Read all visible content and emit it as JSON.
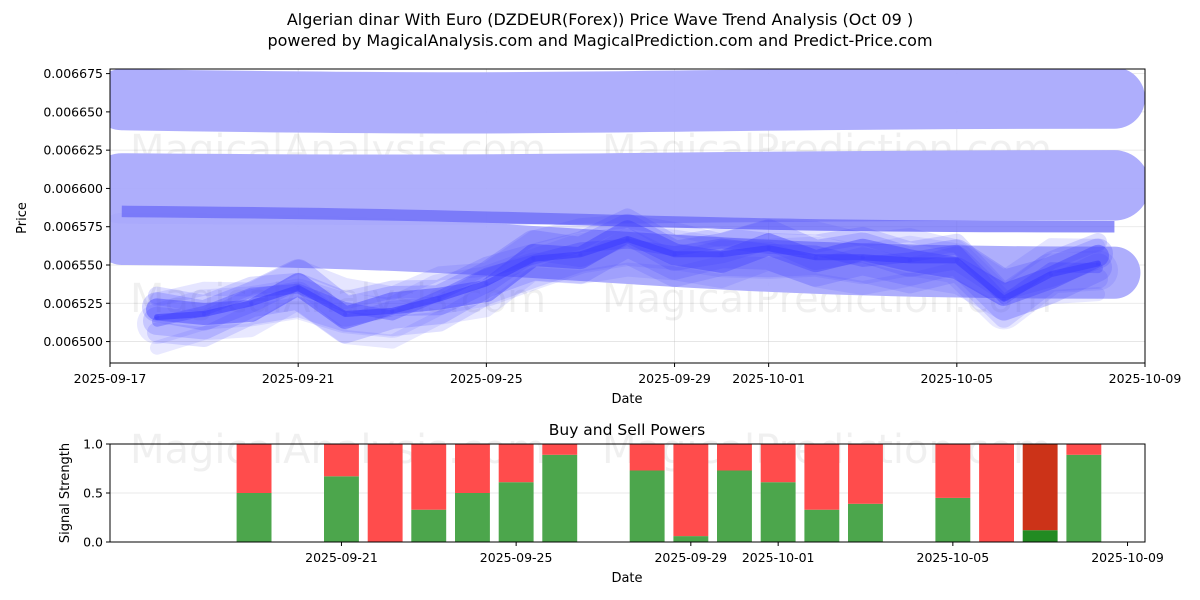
{
  "header": {
    "title": "Algerian dinar With Euro (DZDEUR(Forex)) Price Wave Trend Analysis (Oct 09 )",
    "subtitle": "powered by MagicalAnalysis.com and MagicalPrediction.com and Predict-Price.com"
  },
  "watermarks": [
    "MagicalAnalysis.com",
    "MagicalPrediction.com"
  ],
  "chart_data": [
    {
      "type": "area",
      "title": "",
      "xlabel": "Date",
      "ylabel": "Price",
      "xlim": [
        "2025-09-17",
        "2025-10-09"
      ],
      "ylim": [
        0.006486,
        0.006678
      ],
      "x_ticks": [
        "2025-09-17",
        "2025-09-21",
        "2025-09-25",
        "2025-09-29",
        "2025-10-01",
        "2025-10-05",
        "2025-10-09"
      ],
      "y_ticks": [
        "0.006500",
        "0.006525",
        "0.006550",
        "0.006575",
        "0.006600",
        "0.006625",
        "0.006650",
        "0.006675"
      ],
      "y_tick_values": [
        0.0065,
        0.006525,
        0.00655,
        0.006575,
        0.0066,
        0.006625,
        0.00665,
        0.006675
      ],
      "grid": true,
      "color": "#4444ff",
      "x": [
        "2025-09-18",
        "2025-09-19",
        "2025-09-20",
        "2025-09-21",
        "2025-09-22",
        "2025-09-23",
        "2025-09-24",
        "2025-09-25",
        "2025-09-26",
        "2025-09-27",
        "2025-09-28",
        "2025-09-29",
        "2025-09-30",
        "2025-10-01",
        "2025-10-02",
        "2025-10-03",
        "2025-10-04",
        "2025-10-05",
        "2025-10-06",
        "2025-10-07",
        "2025-10-08"
      ],
      "series": [
        {
          "name": "price",
          "values": [
            0.006516,
            0.006518,
            0.006525,
            0.006535,
            0.006518,
            0.00652,
            0.006528,
            0.006538,
            0.006554,
            0.006557,
            0.006567,
            0.006557,
            0.006557,
            0.006561,
            0.006555,
            0.006555,
            0.006553,
            0.006553,
            0.006528,
            0.006544,
            0.006551
          ]
        }
      ],
      "wave_bands": [
        {
          "name": "long-wave-upper",
          "start": 0.006658,
          "end": 0.006659
        },
        {
          "name": "long-wave-middle",
          "start": 0.0066,
          "end": 0.006602
        },
        {
          "name": "long-wave-lower",
          "start": 0.006567,
          "end": 0.006545
        },
        {
          "name": "mid-wave",
          "start": 0.006585,
          "end": 0.006575
        }
      ]
    },
    {
      "type": "bar",
      "title": "Buy and Sell Powers",
      "xlabel": "Date",
      "ylabel": "Signal Strength",
      "xlim": [
        "2025-09-17",
        "2025-10-09"
      ],
      "ylim": [
        0,
        1.0
      ],
      "x_ticks": [
        "2025-09-21",
        "2025-09-25",
        "2025-09-29",
        "2025-10-01",
        "2025-10-05",
        "2025-10-09"
      ],
      "y_ticks": [
        "0.0",
        "0.5",
        "1.0"
      ],
      "grid": true,
      "categories": [
        "2025-09-19",
        "2025-09-21",
        "2025-09-22",
        "2025-09-23",
        "2025-09-24",
        "2025-09-25",
        "2025-09-26",
        "2025-09-28",
        "2025-09-29",
        "2025-09-30",
        "2025-10-01",
        "2025-10-02",
        "2025-10-03",
        "2025-10-05",
        "2025-10-06",
        "2025-10-07",
        "2025-10-08"
      ],
      "series": [
        {
          "name": "Buy",
          "color": "#4ca64c",
          "values": [
            0.5,
            0.67,
            0.0,
            0.33,
            0.5,
            0.61,
            0.89,
            0.73,
            0.06,
            0.73,
            0.61,
            0.33,
            0.39,
            0.45,
            0.0,
            0.12,
            0.89
          ]
        },
        {
          "name": "Sell",
          "color": "#ff4c4c",
          "values": [
            0.5,
            0.33,
            1.0,
            0.67,
            0.5,
            0.39,
            0.11,
            0.27,
            0.94,
            0.27,
            0.39,
            0.67,
            0.61,
            0.55,
            1.0,
            0.88,
            0.11
          ]
        }
      ],
      "highlight": {
        "date": "2025-10-07",
        "buy_color": "#228b22",
        "sell_color": "#cc3318"
      }
    }
  ]
}
